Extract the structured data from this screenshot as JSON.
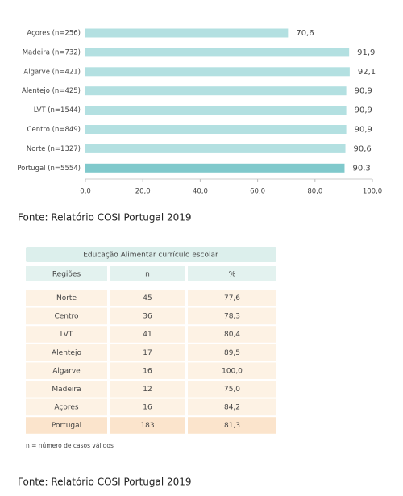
{
  "chart_data": {
    "type": "hbar",
    "categories": [
      "Açores (n=256)",
      "Madeira (n=732)",
      "Algarve (n=421)",
      "Alentejo (n=425)",
      "LVT (n=1544)",
      "Centro (n=849)",
      "Norte (n=1327)",
      "Portugal (n=5554)"
    ],
    "values": [
      70.6,
      91.9,
      92.1,
      90.9,
      90.9,
      90.9,
      90.6,
      90.3
    ],
    "value_labels": [
      "70,6",
      "91,9",
      "92,1",
      "90,9",
      "90,9",
      "90,9",
      "90,6",
      "90,3"
    ],
    "colors": [
      "#b3e0e1",
      "#b3e0e1",
      "#b3e0e1",
      "#b3e0e1",
      "#b3e0e1",
      "#b3e0e1",
      "#b3e0e1",
      "#80c9cc"
    ],
    "xlim": [
      0,
      100
    ],
    "xticks": [
      {
        "value": 0,
        "label": "0,0"
      },
      {
        "value": 20,
        "label": "20,0"
      },
      {
        "value": 40,
        "label": "40,0"
      },
      {
        "value": 60,
        "label": "60,0"
      },
      {
        "value": 80,
        "label": "80,0"
      },
      {
        "value": 100,
        "label": "100,0"
      }
    ]
  },
  "caption_1": "Fonte: Relatório COSI Portugal 2019",
  "table": {
    "title": "Educação Alimentar currículo escolar",
    "header": [
      "Regiões",
      "n",
      "%"
    ],
    "rows": [
      [
        "Norte",
        "45",
        "77,6"
      ],
      [
        "Centro",
        "36",
        "78,3"
      ],
      [
        "LVT",
        "41",
        "80,4"
      ],
      [
        "Alentejo",
        "17",
        "89,5"
      ],
      [
        "Algarve",
        "16",
        "100,0"
      ],
      [
        "Madeira",
        "12",
        "75,0"
      ],
      [
        "Açores",
        "16",
        "84,2"
      ],
      [
        "Portugal",
        "183",
        "81,3"
      ]
    ],
    "footnote": "n = número de casos válidos"
  },
  "caption_2": "Fonte: Relatório COSI Portugal 2019"
}
